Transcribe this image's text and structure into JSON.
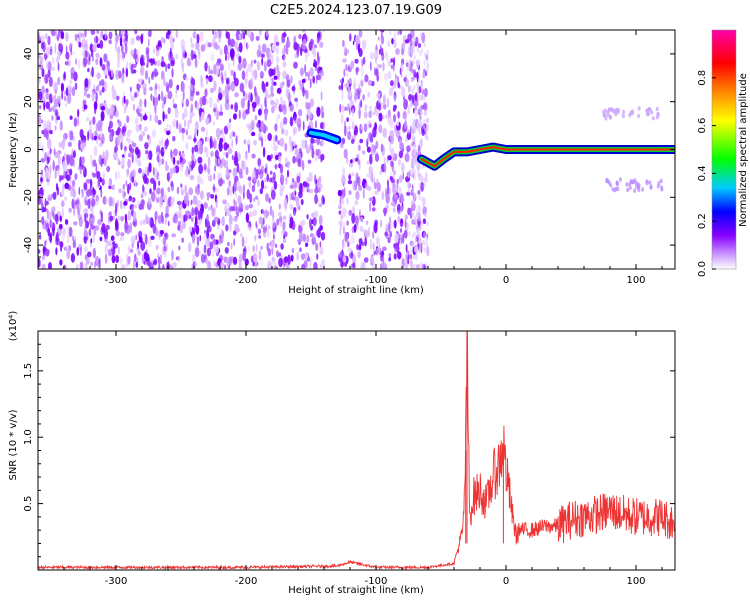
{
  "figure_title": "C2E5.2024.123.07.19.G09",
  "chart_data": [
    {
      "type": "heatmap",
      "xlabel": "Height of straight line (km)",
      "ylabel": "Frequency (Hz)",
      "xlim": [
        -360,
        130
      ],
      "ylim": [
        -50,
        50
      ],
      "xticks": [
        -300,
        -200,
        -100,
        0,
        100
      ],
      "yticks": [
        -40,
        -20,
        0,
        20,
        40
      ],
      "colorbar": {
        "label": "Normalized spectral amplitude",
        "range": [
          0,
          1
        ],
        "ticks": [
          0.0,
          0.2,
          0.4,
          0.6,
          0.8
        ],
        "colormap": [
          "#ffffff",
          "#cc99ff",
          "#8800ff",
          "#0000ff",
          "#00ccff",
          "#00ff00",
          "#ffff00",
          "#ff8800",
          "#ff0000",
          "#ff00aa"
        ]
      },
      "features": {
        "noise_region_x": [
          -360,
          -60
        ],
        "noise_gap_x": [
          -140,
          -128
        ],
        "signal_track": [
          {
            "x": -150,
            "y": 7
          },
          {
            "x": -140,
            "y": 6
          },
          {
            "x": -130,
            "y": 4
          },
          {
            "x": -65,
            "y": -4
          },
          {
            "x": -55,
            "y": -7
          },
          {
            "x": -48,
            "y": -4
          },
          {
            "x": -40,
            "y": -1
          },
          {
            "x": -30,
            "y": -1
          },
          {
            "x": -20,
            "y": 0
          },
          {
            "x": -10,
            "y": 1
          },
          {
            "x": 0,
            "y": 0
          },
          {
            "x": 130,
            "y": 0
          }
        ],
        "sidebands": [
          {
            "x": [
              75,
              120
            ],
            "y": 15
          },
          {
            "x": [
              75,
              120
            ],
            "y": -15
          }
        ]
      }
    },
    {
      "type": "line",
      "xlabel": "Height of straight line (km)",
      "ylabel": "SNR (10 * v/v)",
      "yscale_label": "(x10⁴)",
      "xlim": [
        -360,
        130
      ],
      "ylim": [
        0,
        1.8
      ],
      "xticks": [
        -300,
        -200,
        -100,
        0,
        100
      ],
      "yticks": [
        0.5,
        1.0,
        1.5
      ],
      "ytick_labels": [
        "0.5",
        "1.0",
        "1.5"
      ],
      "color": "#ee3333",
      "series": [
        {
          "x": [
            -360,
            -300,
            -200,
            -130,
            -120,
            -100,
            -60,
            -40,
            -33,
            -31,
            -30,
            -28,
            -25,
            -20,
            -15,
            -10,
            -5,
            -2,
            0,
            3,
            5,
            8,
            10,
            20,
            30,
            40,
            50,
            60,
            70,
            80,
            90,
            100,
            110,
            120,
            130
          ],
          "y": [
            0.02,
            0.02,
            0.02,
            0.03,
            0.06,
            0.02,
            0.02,
            0.05,
            0.3,
            0.9,
            1.75,
            0.4,
            0.55,
            0.6,
            0.5,
            0.7,
            0.8,
            0.95,
            0.75,
            0.55,
            0.4,
            0.25,
            0.3,
            0.3,
            0.33,
            0.33,
            0.38,
            0.4,
            0.42,
            0.45,
            0.42,
            0.4,
            0.4,
            0.4,
            0.35
          ]
        }
      ]
    }
  ]
}
